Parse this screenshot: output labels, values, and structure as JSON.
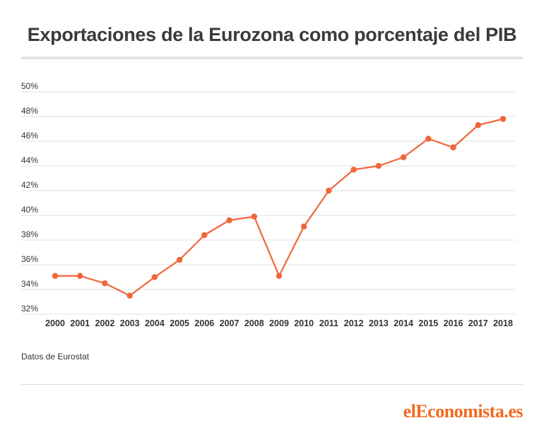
{
  "header": {
    "title": "Exportaciones de la Eurozona como porcentaje del PIB"
  },
  "footer": {
    "source": "Datos de Eurostat",
    "logo_text": "elEconomista.es"
  },
  "chart_data": {
    "type": "line",
    "title": "Exportaciones de la Eurozona como porcentaje del PIB",
    "xlabel": "",
    "ylabel": "",
    "x": [
      "2000",
      "2001",
      "2002",
      "2003",
      "2004",
      "2005",
      "2006",
      "2007",
      "2008",
      "2009",
      "2010",
      "2011",
      "2012",
      "2013",
      "2014",
      "2015",
      "2016",
      "2017",
      "2018"
    ],
    "series": [
      {
        "values": [
          35.1,
          35.1,
          34.5,
          33.5,
          35.0,
          36.4,
          38.4,
          39.6,
          39.9,
          35.1,
          39.1,
          42.0,
          43.7,
          44.0,
          44.7,
          46.2,
          45.5,
          47.3,
          47.8
        ]
      }
    ],
    "yticks": [
      "32%",
      "34%",
      "36%",
      "38%",
      "40%",
      "42%",
      "44%",
      "46%",
      "48%",
      "50%"
    ],
    "ylim": [
      32,
      50
    ],
    "grid": true,
    "legend": "none",
    "colors": {
      "line": "#f0663b",
      "grid": "#e2e2e2",
      "text": "#333333"
    }
  }
}
